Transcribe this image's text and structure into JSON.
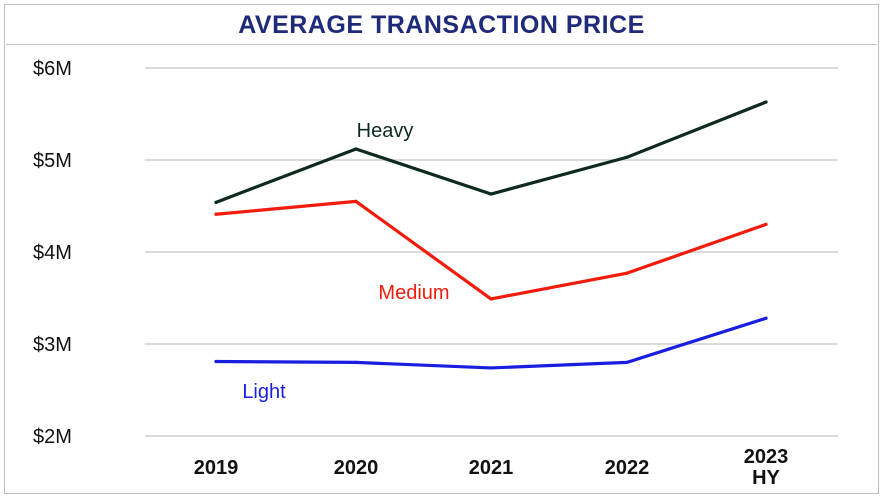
{
  "chart_data": {
    "type": "line",
    "title": "AVERAGE TRANSACTION PRICE",
    "xlabel": "",
    "ylabel": "",
    "categories": [
      [
        "2019"
      ],
      [
        "2020"
      ],
      [
        "2021"
      ],
      [
        "2022"
      ],
      [
        "2023",
        "HY"
      ]
    ],
    "y_tick_labels": [
      "$2M",
      "$3M",
      "$4M",
      "$5M",
      "$6M"
    ],
    "y_ticks": [
      2,
      3,
      4,
      5,
      6
    ],
    "ylim": [
      2,
      6
    ],
    "grid": true,
    "series": [
      {
        "name": "Heavy",
        "color": "#0d2a1d",
        "values": [
          4.54,
          5.12,
          4.63,
          5.03,
          5.63
        ]
      },
      {
        "name": "Medium",
        "color": "#f21b0c",
        "values": [
          4.41,
          4.55,
          3.49,
          3.77,
          4.3
        ]
      },
      {
        "name": "Light",
        "color": "#1a1ee0",
        "values": [
          2.81,
          2.8,
          2.74,
          2.8,
          3.28
        ]
      }
    ]
  }
}
